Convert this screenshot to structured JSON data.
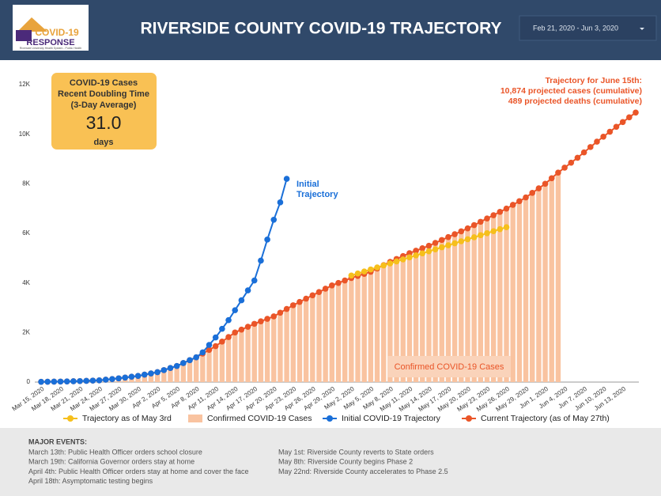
{
  "header": {
    "title": "RIVERSIDE COUNTY COVID-19 TRAJECTORY",
    "date_range": "Feb 21, 2020 - Jun 3, 2020",
    "logo": {
      "line1": "COVID-19",
      "line2": "RESPONSE",
      "line3": "Riverside University Health System - Public Health"
    }
  },
  "kpi": {
    "lines": [
      "COVID-19 Cases",
      "Recent Doubling Time",
      "(3-Day Average)"
    ],
    "value": "31.0",
    "unit": "days"
  },
  "chart_data": {
    "type": "line",
    "categories": [
      "Mar 15, 2020",
      null,
      null,
      "Mar 18, 2020",
      null,
      null,
      "Mar 21, 2020",
      null,
      null,
      "Mar 24, 2020",
      null,
      null,
      "Mar 27, 2020",
      null,
      null,
      "Mar 30, 2020",
      null,
      null,
      "Apr 2, 2020",
      null,
      null,
      "Apr 5, 2020",
      null,
      null,
      "Apr 8, 2020",
      null,
      null,
      "Apr 11, 2020",
      null,
      null,
      "Apr 14, 2020",
      null,
      null,
      "Apr 17, 2020",
      null,
      null,
      "Apr 20, 2020",
      null,
      null,
      "Apr 23, 2020",
      null,
      null,
      "Apr 26, 2020",
      null,
      null,
      "Apr 29, 2020",
      null,
      null,
      "May 2, 2020",
      null,
      null,
      "May 5, 2020",
      null,
      null,
      "May 8, 2020",
      null,
      null,
      "May 11, 2020",
      null,
      null,
      "May 14, 2020",
      null,
      null,
      "May 17, 2020",
      null,
      null,
      "May 20, 2020",
      null,
      null,
      "May 23, 2020",
      null,
      null,
      "May 26, 2020",
      null,
      null,
      "May 29, 2020",
      null,
      null,
      "Jun 1, 2020",
      null,
      null,
      "Jun 4, 2020",
      null,
      null,
      "Jun 7, 2020",
      null,
      null,
      "Jun 10, 2020",
      null,
      null,
      "Jun 13, 2020",
      null,
      null
    ],
    "ylim": [
      0,
      12000
    ],
    "yticks": [
      0,
      {
        "value": 2000,
        "label": "2K"
      },
      {
        "value": 4000,
        "label": "4K"
      },
      {
        "value": 6000,
        "label": "6K"
      },
      {
        "value": 8000,
        "label": "8K"
      },
      {
        "value": 10000,
        "label": "10K"
      },
      {
        "value": 12000,
        "label": "12K"
      }
    ],
    "series": [
      {
        "name": "Trajectory as of May 3rd",
        "type": "line",
        "color": "#f6bf1c",
        "values": [
          null,
          null,
          null,
          null,
          null,
          null,
          null,
          null,
          null,
          null,
          null,
          null,
          null,
          null,
          null,
          null,
          null,
          null,
          null,
          null,
          null,
          null,
          null,
          null,
          null,
          null,
          null,
          null,
          null,
          null,
          null,
          null,
          null,
          null,
          null,
          null,
          null,
          null,
          null,
          null,
          null,
          null,
          null,
          null,
          null,
          null,
          null,
          null,
          4300,
          4381,
          4463,
          4544,
          4625,
          4706,
          4788,
          4869,
          4950,
          5031,
          5113,
          5194,
          5275,
          5356,
          5438,
          5519,
          5600,
          5681,
          5763,
          5844,
          5925,
          6006,
          6088,
          6169,
          6250,
          null,
          null,
          null,
          null,
          null,
          null,
          null,
          null,
          null,
          null,
          null,
          null,
          null,
          null,
          null,
          null,
          null,
          null,
          null,
          null
        ]
      },
      {
        "name": "Confirmed COVID-19 Cases",
        "type": "bar",
        "color": "#f9c3a0",
        "values": [
          10,
          13,
          17,
          20,
          27,
          33,
          40,
          50,
          60,
          70,
          97,
          123,
          150,
          183,
          217,
          250,
          300,
          350,
          400,
          483,
          567,
          650,
          767,
          883,
          1000,
          1150,
          1300,
          1450,
          1633,
          1817,
          2000,
          2117,
          2233,
          2350,
          2450,
          2550,
          2650,
          2800,
          2950,
          3100,
          3233,
          3367,
          3500,
          3633,
          3767,
          3900,
          4000,
          4100,
          4200,
          4283,
          4367,
          4450,
          4583,
          4717,
          4850,
          4967,
          5083,
          5200,
          5300,
          5400,
          5500,
          5617,
          5733,
          5850,
          5967,
          6083,
          6200,
          6333,
          6467,
          6600,
          6733,
          6867,
          7000,
          7150,
          7300,
          7450,
          7633,
          7817,
          8000,
          8225,
          8450,
          null,
          null,
          null,
          null,
          null,
          null,
          null,
          null,
          null,
          null,
          null,
          null
        ]
      },
      {
        "name": "Initial COVID-19 Trajectory",
        "type": "line",
        "color": "#1a6fd8",
        "values": [
          10,
          13,
          17,
          20,
          27,
          33,
          40,
          50,
          60,
          70,
          97,
          123,
          150,
          183,
          217,
          250,
          300,
          350,
          400,
          483,
          567,
          650,
          767,
          883,
          1000,
          1200,
          1500,
          1800,
          2150,
          2500,
          2900,
          3300,
          3700,
          4100,
          4900,
          5750,
          6550,
          7250,
          8200,
          null,
          null,
          null,
          null,
          null,
          null,
          null,
          null,
          null,
          null,
          null,
          null,
          null,
          null,
          null,
          null,
          null,
          null,
          null,
          null,
          null,
          null,
          null,
          null,
          null,
          null,
          null,
          null,
          null,
          null,
          null,
          null,
          null,
          null,
          null,
          null,
          null,
          null,
          null,
          null,
          null,
          null,
          null,
          null,
          null,
          null,
          null,
          null,
          null,
          null,
          null,
          null,
          null,
          null
        ]
      },
      {
        "name": "Current Trajectory (as of May 27th)",
        "type": "line",
        "color": "#ea5528",
        "values": [
          10,
          13,
          17,
          20,
          27,
          33,
          40,
          50,
          60,
          70,
          97,
          123,
          150,
          183,
          217,
          250,
          300,
          350,
          400,
          483,
          567,
          650,
          767,
          883,
          1000,
          1150,
          1300,
          1450,
          1633,
          1817,
          2000,
          2117,
          2233,
          2350,
          2450,
          2550,
          2650,
          2800,
          2950,
          3100,
          3233,
          3367,
          3500,
          3633,
          3767,
          3900,
          4000,
          4100,
          4200,
          4283,
          4367,
          4450,
          4583,
          4717,
          4850,
          4967,
          5083,
          5200,
          5300,
          5400,
          5500,
          5617,
          5733,
          5850,
          5967,
          6083,
          6200,
          6333,
          6467,
          6600,
          6733,
          6867,
          7000,
          7150,
          7300,
          7450,
          7633,
          7817,
          8000,
          8225,
          8450,
          8650,
          8850,
          9050,
          9267,
          9483,
          9700,
          9900,
          10100,
          10300,
          10491,
          10682,
          10874
        ]
      }
    ],
    "annotations": {
      "initial": [
        "Initial",
        "Trajectory"
      ],
      "projection": [
        "Trajectory for June 15th:",
        "10,874 projected cases (cumulative)",
        "489 projected deaths (cumulative)"
      ],
      "bar_label": "Confirmed COVID-19 Cases"
    }
  },
  "footer": {
    "heading": "MAJOR EVENTS:",
    "left": [
      "March 13th: Public Health Officer orders school closure",
      "March 19th: California Governor orders stay at home",
      "April 4th: Public Health Officer orders stay at home and cover the face",
      "April 18th: Asymptomatic testing begins"
    ],
    "right": [
      "May 1st: Riverside County reverts to State orders",
      "May 8th: Riverside County begins Phase 2",
      "May 22nd: Riverside County accelerates to Phase 2.5"
    ]
  }
}
